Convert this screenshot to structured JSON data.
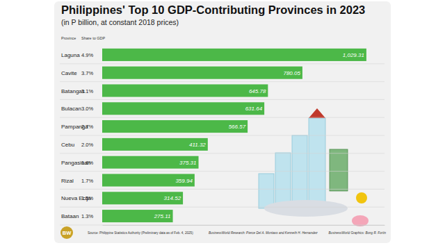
{
  "chart_data": {
    "type": "bar",
    "orientation": "horizontal",
    "title": "Philippines' Top 10 GDP-Contributing Provinces in 2023",
    "subtitle": "(in P billion, at constant 2018 prices)",
    "category_header": "Province",
    "share_header": "Share to GDP",
    "categories": [
      "Laguna",
      "Cavite",
      "Batangas",
      "Bulacan",
      "Pampanga",
      "Cebu",
      "Pangasinan",
      "Rizal",
      "Nueva Ecija",
      "Bataan"
    ],
    "values": [
      1029.31,
      780.05,
      645.78,
      631.64,
      566.57,
      411.32,
      375.31,
      359.94,
      314.52,
      275.11
    ],
    "value_labels": [
      "1,029.31",
      "780.05",
      "645.78",
      "631.64",
      "566.57",
      "411.32",
      "375.31",
      "359.94",
      "314.52",
      "275.11"
    ],
    "shares": [
      4.9,
      3.7,
      3.1,
      3.0,
      2.7,
      2.0,
      1.8,
      1.7,
      1.5,
      1.3
    ],
    "share_labels": [
      "4.9%",
      "3.7%",
      "3.1%",
      "3.0%",
      "2.7%",
      "2.0%",
      "1.8%",
      "1.7%",
      "1.5%",
      "1.3%"
    ],
    "color": "#4cb848",
    "data_labels": true,
    "tick_labels": false,
    "xlim": [
      0,
      1100
    ],
    "source": "Source: Philippine Statistics Authority (Preliminary data as of Feb. 4, 2025)",
    "credits": [
      "BusinessWorld Research: Pierce Del A. Montavo and Kenneth H. Hernandez",
      "BusinessWorld Graphics: Bong R. Fortin"
    ],
    "logo": "BW"
  }
}
